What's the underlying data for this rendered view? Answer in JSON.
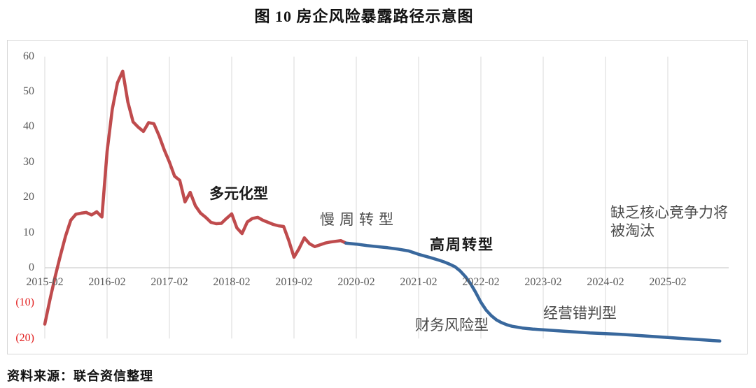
{
  "page": {
    "title": "图 10  房企风险暴露路径示意图",
    "source": "资料来源：联合资信整理"
  },
  "chart_data": {
    "type": "line",
    "title": "图 10  房企风险暴露路径示意图",
    "grid": "vertical-yearly-only",
    "legend": "none",
    "x_axis": {
      "tick_labels": [
        "2015-02",
        "2016-02",
        "2017-02",
        "2018-02",
        "2019-02",
        "2020-02",
        "2021-02",
        "2022-02",
        "2023-02",
        "2024-02",
        "2025-02"
      ],
      "months_per_tick": 12,
      "label_color": "#595959"
    },
    "y_axis": {
      "tick_labels": [
        "60",
        "50",
        "40",
        "30",
        "20",
        "10",
        "0",
        "(10)",
        "(20)"
      ],
      "tick_values": [
        60,
        50,
        40,
        30,
        20,
        10,
        0,
        -10,
        -20
      ],
      "visible_range": [
        -20,
        60
      ],
      "label_color": "#595959",
      "negative_label_color": "#e21f1f"
    },
    "series": [
      {
        "id": "red-path",
        "color": "#bf4b4d",
        "x_unit": "months_since_2015-02",
        "points": [
          [
            0,
            -16
          ],
          [
            1,
            -9
          ],
          [
            2,
            -2.5
          ],
          [
            3,
            3.5
          ],
          [
            4,
            9
          ],
          [
            5,
            13.5
          ],
          [
            6,
            15.2
          ],
          [
            7,
            15.5
          ],
          [
            8,
            15.7
          ],
          [
            9,
            15
          ],
          [
            10,
            15.9
          ],
          [
            11,
            14.4
          ],
          [
            12,
            33
          ],
          [
            13,
            45
          ],
          [
            14,
            52.5
          ],
          [
            15,
            55.8
          ],
          [
            16,
            47
          ],
          [
            17,
            41.4
          ],
          [
            18,
            39.9
          ],
          [
            19,
            38.7
          ],
          [
            20,
            41.2
          ],
          [
            21,
            40.9
          ],
          [
            22,
            37.5
          ],
          [
            23,
            33.5
          ],
          [
            24,
            30
          ],
          [
            25,
            26
          ],
          [
            26,
            24.8
          ],
          [
            27,
            18.7
          ],
          [
            28,
            21.4
          ],
          [
            29,
            17.6
          ],
          [
            30,
            15.5
          ],
          [
            31,
            14.3
          ],
          [
            32,
            12.9
          ],
          [
            33,
            12.5
          ],
          [
            34,
            12.6
          ],
          [
            35,
            14
          ],
          [
            36,
            15.3
          ],
          [
            37,
            11.3
          ],
          [
            38,
            9.7
          ],
          [
            39,
            13
          ],
          [
            40,
            14
          ],
          [
            41,
            14.3
          ],
          [
            42,
            13.5
          ],
          [
            43,
            12.9
          ],
          [
            44,
            12.3
          ],
          [
            45,
            11.9
          ],
          [
            46,
            11.7
          ],
          [
            47,
            7.7
          ],
          [
            48,
            3
          ],
          [
            49,
            5.5
          ],
          [
            50,
            8.5
          ],
          [
            51,
            6.8
          ],
          [
            52,
            6
          ],
          [
            53,
            6.5
          ],
          [
            54,
            7
          ],
          [
            55,
            7.3
          ],
          [
            56,
            7.5
          ],
          [
            57,
            7.7
          ],
          [
            58,
            7
          ]
        ]
      },
      {
        "id": "blue-path",
        "color": "#39689d",
        "x_unit": "months_since_2015-02",
        "points": [
          [
            58,
            7
          ],
          [
            60,
            6.7
          ],
          [
            62,
            6.3
          ],
          [
            64,
            6
          ],
          [
            66,
            5.7
          ],
          [
            68,
            5.3
          ],
          [
            70,
            4.8
          ],
          [
            72,
            3.8
          ],
          [
            74,
            3
          ],
          [
            76,
            2.1
          ],
          [
            77,
            1.6
          ],
          [
            78,
            1
          ],
          [
            79,
            0.3
          ],
          [
            80,
            -0.9
          ],
          [
            81,
            -2.5
          ],
          [
            82,
            -4.5
          ],
          [
            83,
            -7
          ],
          [
            84,
            -9.8
          ],
          [
            85,
            -12
          ],
          [
            86,
            -13.6
          ],
          [
            87,
            -14.8
          ],
          [
            88,
            -15.6
          ],
          [
            89,
            -16.2
          ],
          [
            90,
            -16.6
          ],
          [
            92,
            -17.1
          ],
          [
            94,
            -17.4
          ],
          [
            96,
            -17.6
          ],
          [
            98,
            -17.8
          ],
          [
            100,
            -18
          ],
          [
            102,
            -18.2
          ],
          [
            105,
            -18.5
          ],
          [
            108,
            -18.7
          ],
          [
            111,
            -18.9
          ],
          [
            114,
            -19.2
          ],
          [
            117,
            -19.5
          ],
          [
            120,
            -19.8
          ],
          [
            124,
            -20.2
          ],
          [
            128,
            -20.6
          ],
          [
            130,
            -20.8
          ]
        ]
      }
    ],
    "annotations": [
      {
        "text": "多元化型",
        "bold": true
      },
      {
        "text": "慢周转型",
        "bold": false
      },
      {
        "text": "高周转型",
        "bold": true
      },
      {
        "text": "财务风险型",
        "bold": false
      },
      {
        "text": "经营错判型",
        "bold": false
      },
      {
        "text": "缺乏核心竞争力将",
        "text2": "被淘汰",
        "bold": false
      }
    ],
    "colors": {
      "gridline": "#d9d9d9",
      "axis_line": "#c3c3c3",
      "red_series": "#bf4b4d",
      "blue_series": "#39689d"
    }
  }
}
